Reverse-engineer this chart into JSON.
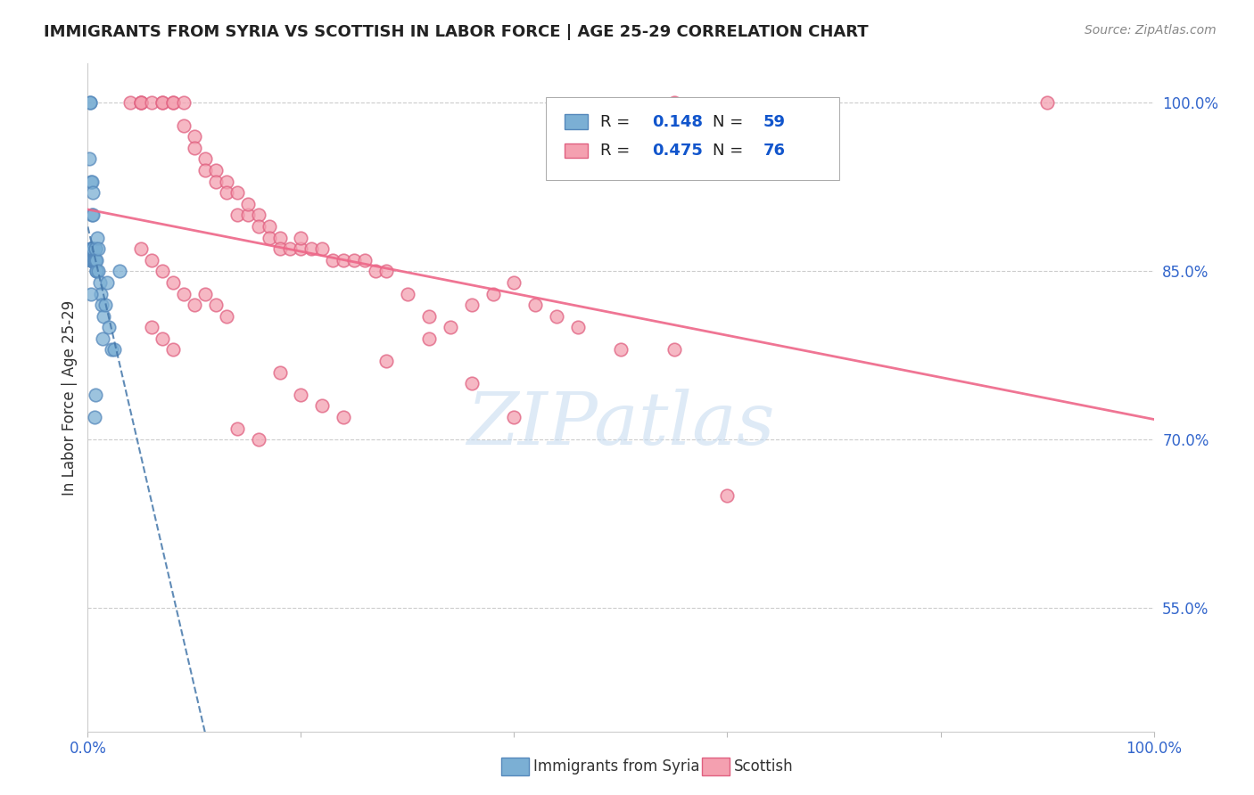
{
  "title": "IMMIGRANTS FROM SYRIA VS SCOTTISH IN LABOR FORCE | AGE 25-29 CORRELATION CHART",
  "source": "Source: ZipAtlas.com",
  "ylabel": "In Labor Force | Age 25-29",
  "r_syria": 0.148,
  "n_syria": 59,
  "r_scottish": 0.475,
  "n_scottish": 76,
  "blue_color": "#7BAFD4",
  "blue_edge": "#5588BB",
  "pink_color": "#F4A0B0",
  "pink_edge": "#E06080",
  "blue_line_color": "#4477AA",
  "pink_line_color": "#EE6688",
  "xmin": 0.0,
  "xmax": 1.0,
  "ymin": 0.44,
  "ymax": 1.035,
  "yticks": [
    0.55,
    0.7,
    0.85,
    1.0
  ],
  "ytick_labels": [
    "55.0%",
    "70.0%",
    "85.0%",
    "100.0%"
  ],
  "watermark": "ZIPatlas",
  "watermark_color": "#C8DCF0",
  "syria_x": [
    0.001,
    0.002,
    0.002,
    0.003,
    0.003,
    0.003,
    0.003,
    0.003,
    0.003,
    0.003,
    0.003,
    0.003,
    0.004,
    0.004,
    0.004,
    0.004,
    0.004,
    0.004,
    0.004,
    0.004,
    0.005,
    0.005,
    0.005,
    0.005,
    0.005,
    0.005,
    0.005,
    0.006,
    0.006,
    0.006,
    0.006,
    0.007,
    0.007,
    0.007,
    0.008,
    0.008,
    0.008,
    0.009,
    0.01,
    0.01,
    0.011,
    0.012,
    0.013,
    0.014,
    0.015,
    0.016,
    0.018,
    0.02,
    0.022,
    0.025,
    0.003,
    0.004,
    0.005,
    0.004,
    0.005,
    0.003,
    0.006,
    0.007,
    0.03
  ],
  "syria_y": [
    0.95,
    1.0,
    1.0,
    0.87,
    0.87,
    0.87,
    0.87,
    0.87,
    0.86,
    0.86,
    0.86,
    0.86,
    0.86,
    0.86,
    0.86,
    0.86,
    0.86,
    0.87,
    0.87,
    0.87,
    0.87,
    0.87,
    0.87,
    0.86,
    0.86,
    0.86,
    0.86,
    0.86,
    0.86,
    0.86,
    0.86,
    0.86,
    0.87,
    0.87,
    0.85,
    0.85,
    0.86,
    0.88,
    0.85,
    0.87,
    0.84,
    0.83,
    0.82,
    0.79,
    0.81,
    0.82,
    0.84,
    0.8,
    0.78,
    0.78,
    0.93,
    0.93,
    0.92,
    0.9,
    0.9,
    0.83,
    0.72,
    0.74,
    0.85
  ],
  "scottish_x": [
    0.04,
    0.05,
    0.05,
    0.05,
    0.06,
    0.07,
    0.07,
    0.08,
    0.08,
    0.09,
    0.09,
    0.1,
    0.1,
    0.11,
    0.11,
    0.12,
    0.12,
    0.13,
    0.13,
    0.14,
    0.14,
    0.15,
    0.15,
    0.16,
    0.16,
    0.17,
    0.17,
    0.18,
    0.18,
    0.19,
    0.2,
    0.2,
    0.21,
    0.22,
    0.23,
    0.24,
    0.25,
    0.26,
    0.27,
    0.28,
    0.05,
    0.06,
    0.07,
    0.08,
    0.09,
    0.1,
    0.11,
    0.12,
    0.13,
    0.06,
    0.07,
    0.08,
    0.3,
    0.32,
    0.34,
    0.36,
    0.38,
    0.4,
    0.42,
    0.44,
    0.46,
    0.5,
    0.55,
    0.18,
    0.2,
    0.22,
    0.24,
    0.14,
    0.16,
    0.55,
    0.36,
    0.4,
    0.32,
    0.28,
    0.9,
    0.6
  ],
  "scottish_y": [
    1.0,
    1.0,
    1.0,
    1.0,
    1.0,
    1.0,
    1.0,
    1.0,
    1.0,
    1.0,
    0.98,
    0.97,
    0.96,
    0.95,
    0.94,
    0.94,
    0.93,
    0.93,
    0.92,
    0.92,
    0.9,
    0.9,
    0.91,
    0.9,
    0.89,
    0.89,
    0.88,
    0.88,
    0.87,
    0.87,
    0.87,
    0.88,
    0.87,
    0.87,
    0.86,
    0.86,
    0.86,
    0.86,
    0.85,
    0.85,
    0.87,
    0.86,
    0.85,
    0.84,
    0.83,
    0.82,
    0.83,
    0.82,
    0.81,
    0.8,
    0.79,
    0.78,
    0.83,
    0.81,
    0.8,
    0.82,
    0.83,
    0.84,
    0.82,
    0.81,
    0.8,
    0.78,
    0.78,
    0.76,
    0.74,
    0.73,
    0.72,
    0.71,
    0.7,
    1.0,
    0.75,
    0.72,
    0.79,
    0.77,
    1.0,
    0.65
  ]
}
